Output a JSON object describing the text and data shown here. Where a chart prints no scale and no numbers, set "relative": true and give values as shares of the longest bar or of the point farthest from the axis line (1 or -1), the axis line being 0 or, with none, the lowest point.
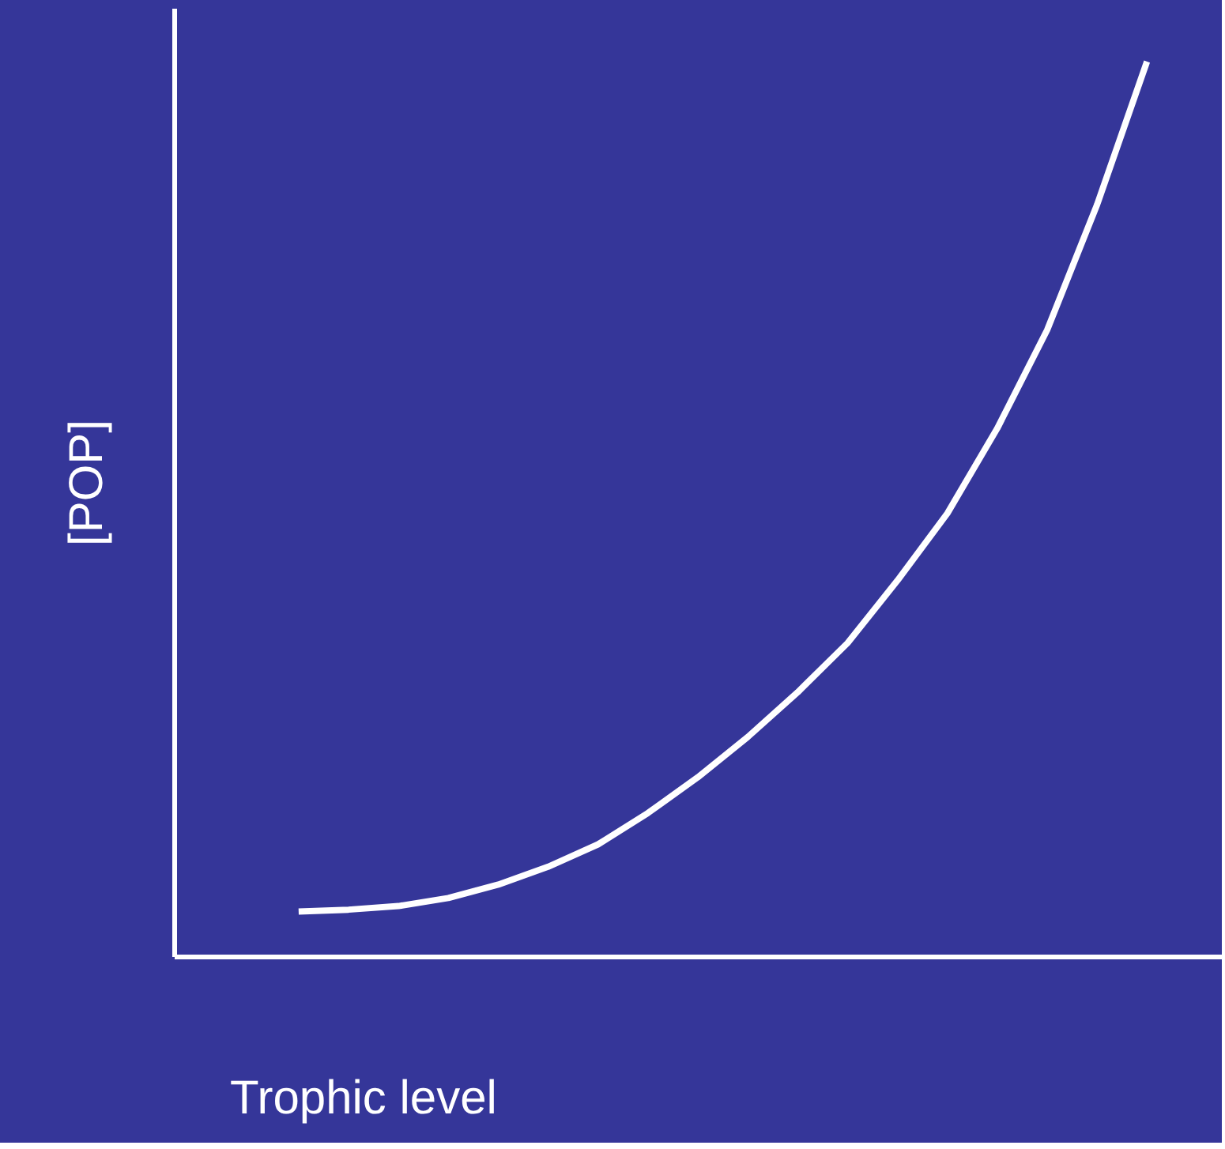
{
  "chart_data": {
    "type": "line",
    "relative": true,
    "xlabel": "Trophic level",
    "ylabel": "[POP]",
    "grid": false,
    "marker": "none",
    "line_style": "solid",
    "categories": [
      null,
      null,
      null,
      null,
      null,
      null,
      null,
      null,
      null,
      null,
      null,
      null,
      null,
      null,
      null,
      null,
      null,
      null,
      null,
      null
    ],
    "series": [
      {
        "color": "#ffffff",
        "values": [
          null,
          0.05,
          0.052,
          0.056,
          0.065,
          0.08,
          0.1,
          0.125,
          0.16,
          0.2,
          0.245,
          0.295,
          0.35,
          0.42,
          0.495,
          0.59,
          0.7,
          0.84,
          1.0,
          null
        ]
      }
    ]
  }
}
